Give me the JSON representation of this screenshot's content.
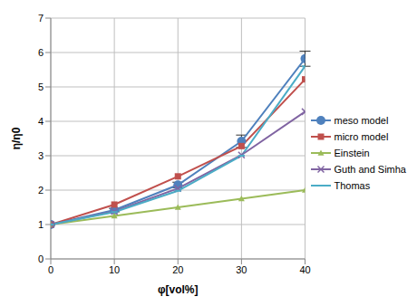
{
  "chart_data": {
    "type": "line",
    "x_label": "φ[vol%]",
    "y_label": "η/η0",
    "x": [
      0,
      10,
      20,
      30,
      40
    ],
    "xlim": [
      0,
      40
    ],
    "xticks": [
      0,
      10,
      20,
      30,
      40
    ],
    "ylim": [
      0,
      7
    ],
    "yticks": [
      0,
      1,
      2,
      3,
      4,
      5,
      6,
      7
    ],
    "grid": true,
    "legend": "right",
    "series": [
      {
        "name": "meso model",
        "color": "#4f81bd",
        "marker": "circle",
        "line_style": "solid",
        "values": [
          1,
          1.42,
          2.15,
          3.42,
          5.82
        ],
        "errors": [
          0,
          0.05,
          0.08,
          0.18,
          0.22
        ]
      },
      {
        "name": "micro model",
        "color": "#c0504d",
        "marker": "square",
        "line_style": "solid",
        "values": [
          1,
          1.58,
          2.4,
          3.28,
          5.22
        ]
      },
      {
        "name": "Einstein",
        "color": "#9bbb59",
        "marker": "triangle",
        "line_style": "solid",
        "values": [
          1,
          1.25,
          1.5,
          1.75,
          2.0
        ]
      },
      {
        "name": "Guth and Simha",
        "color": "#8064a2",
        "marker": "x",
        "line_style": "solid",
        "values": [
          1,
          1.38,
          2.05,
          3.02,
          4.28
        ]
      },
      {
        "name": "Thomas",
        "color": "#4bacc6",
        "marker": "dash",
        "line_style": "solid",
        "values": [
          1,
          1.36,
          1.98,
          3.0,
          5.6
        ]
      }
    ]
  }
}
